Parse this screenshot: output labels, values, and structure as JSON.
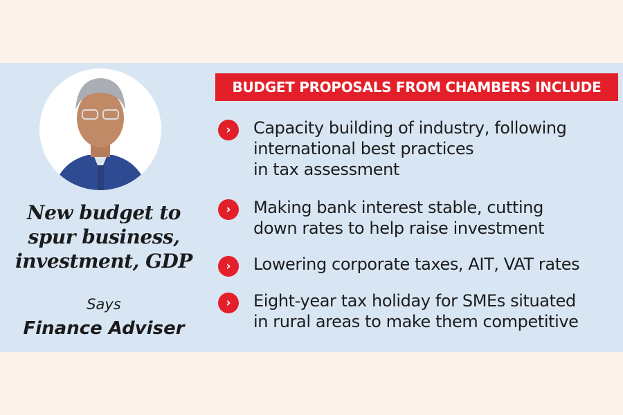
{
  "left": {
    "headline": "New budget to spur business, investment, GDP",
    "says": "Says",
    "speaker": "Finance Adviser"
  },
  "right": {
    "banner": "BUDGET PROPOSALS FROM CHAMBERS INCLUDE",
    "items": [
      {
        "text": "Capacity building of industry, following\ninternational best practices\nin tax assessment"
      },
      {
        "text": "Making bank interest stable, cutting\ndown rates to help raise investment"
      },
      {
        "text": "Lowering corporate taxes, AIT, VAT rates"
      },
      {
        "text": "Eight-year tax holiday for SMEs situated\nin rural areas to make them competitive"
      }
    ]
  },
  "colors": {
    "accent": "#e3202a",
    "panel": "#d8e6f4",
    "page": "#fdf3ea"
  },
  "icons": {
    "bullet": "chevron-right-icon"
  }
}
